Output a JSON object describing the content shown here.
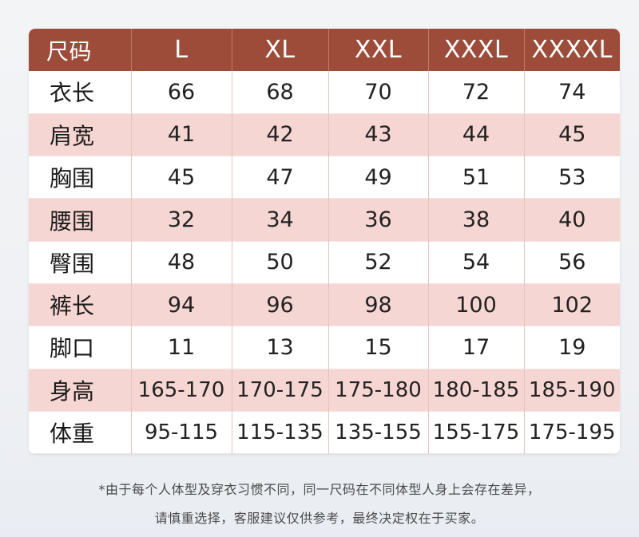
{
  "header": [
    "尺码",
    "L",
    "XL",
    "XXL",
    "XXXL",
    "XXXXL"
  ],
  "rows": [
    [
      "衣长",
      "66",
      "68",
      "70",
      "72",
      "74"
    ],
    [
      "肩宽",
      "41",
      "42",
      "43",
      "44",
      "45"
    ],
    [
      "胸围",
      "45",
      "47",
      "49",
      "51",
      "53"
    ],
    [
      "腰围",
      "32",
      "34",
      "36",
      "38",
      "40"
    ],
    [
      "臀围",
      "48",
      "50",
      "52",
      "54",
      "56"
    ],
    [
      "裤长",
      "94",
      "96",
      "98",
      "100",
      "102"
    ],
    [
      "脚口",
      "11",
      "13",
      "15",
      "17",
      "19"
    ],
    [
      "身高",
      "165-170",
      "170-175",
      "175-180",
      "180-185",
      "185-190"
    ],
    [
      "体重",
      "95-115",
      "115-135",
      "135-155",
      "155-175",
      "175-195"
    ]
  ],
  "notes": {
    "line1": "*由于每个人体型及穿衣习惯不同，同一尺码在不同体型人身上会存在差异，",
    "line2": "请慎重选择，客服建议仅供参考，最终决定权在于买家。"
  },
  "colors": {
    "header_bg": "#9d4c3a",
    "stripe_bg": "#f6d6d3",
    "row_bg": "#ffffff"
  }
}
